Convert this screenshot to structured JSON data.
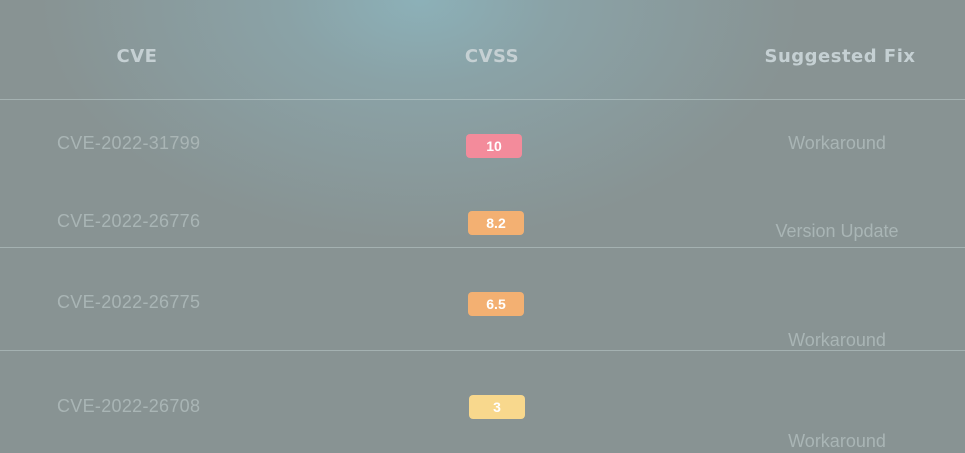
{
  "table": {
    "headers": {
      "cve": "CVE",
      "cvss": "CVSS",
      "fix": "Suggested Fix"
    },
    "rows": [
      {
        "cve": "CVE-2022-31799",
        "cvss": "10",
        "fix": "Workaround",
        "severity_color": "#f38b9b"
      },
      {
        "cve": "CVE-2022-26776",
        "cvss": "8.2",
        "fix": "Version Update",
        "severity_color": "#f3b072"
      },
      {
        "cve": "CVE-2022-26775",
        "cvss": "6.5",
        "fix": "Workaround",
        "severity_color": "#f3b072"
      },
      {
        "cve": "CVE-2022-26708",
        "cvss": "3",
        "fix": "Workaround",
        "severity_color": "#f8d88d"
      }
    ]
  },
  "colors": {
    "background": "#889393",
    "header_text": "#c5d0d3",
    "cell_text": "#a9b5b5",
    "divider": "#c8d6d8"
  }
}
